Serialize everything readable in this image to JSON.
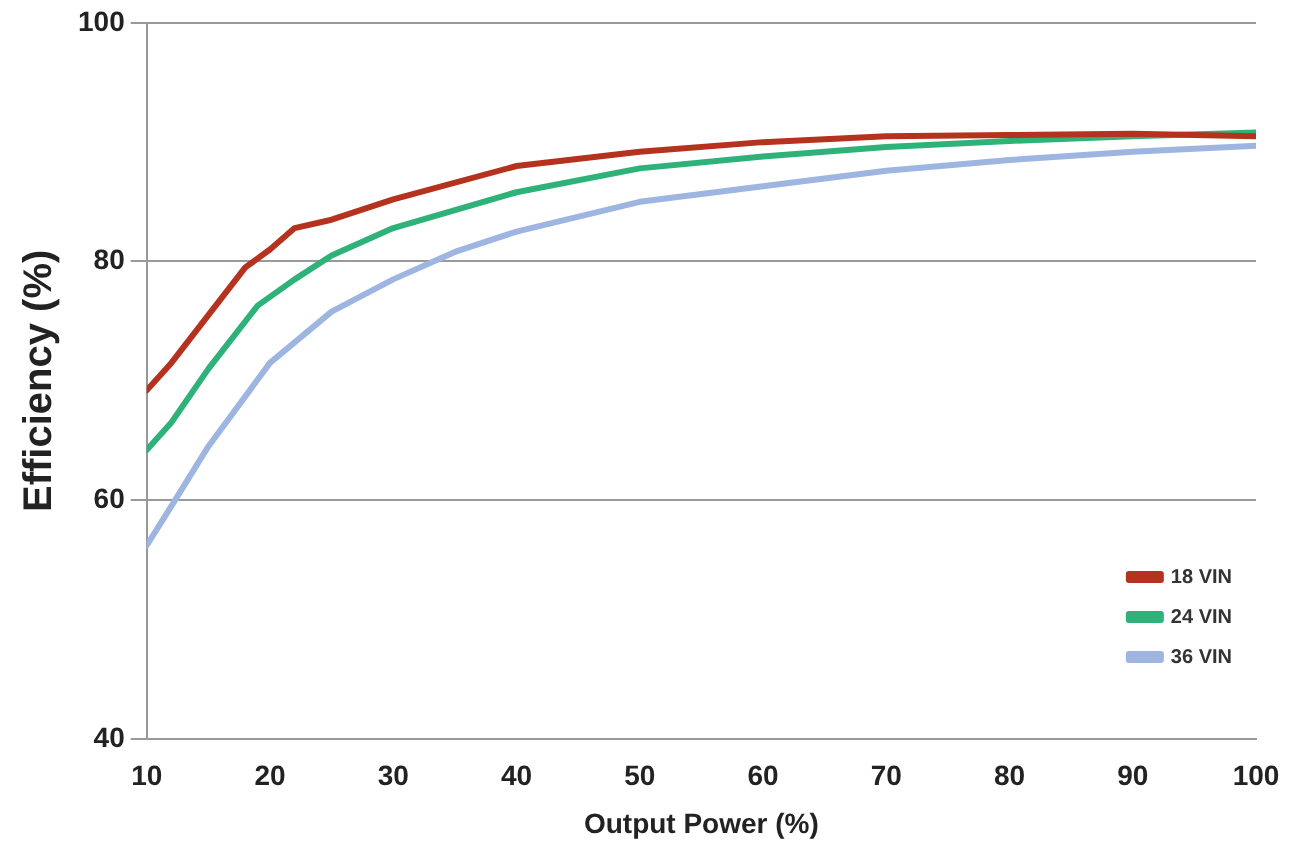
{
  "chart_data": {
    "type": "line",
    "xlabel": "Output Power (%)",
    "ylabel": "Efficiency (%)",
    "xlim": [
      10,
      100
    ],
    "xticks": [
      10,
      20,
      30,
      40,
      50,
      60,
      70,
      80,
      90,
      100
    ],
    "ylim": [
      40,
      100
    ],
    "yticks": [
      40,
      60,
      80,
      100
    ],
    "grid": "y",
    "legend": "right",
    "marker": "none",
    "line_style": "solid",
    "series": [
      {
        "name": "18 VIN",
        "color": "#b5321f",
        "x": [
          10,
          12,
          15,
          18,
          20,
          22,
          25,
          30,
          40,
          50,
          60,
          70,
          80,
          90,
          100
        ],
        "values": [
          69.2,
          71.5,
          75.5,
          79.5,
          81,
          82.8,
          83.5,
          85.2,
          88,
          89.2,
          90,
          90.5,
          90.6,
          90.7,
          90.5
        ]
      },
      {
        "name": "24 VIN",
        "color": "#2eb27a",
        "x": [
          10,
          12,
          15,
          19,
          22,
          25,
          30,
          40,
          50,
          60,
          70,
          80,
          90,
          100
        ],
        "values": [
          64.2,
          66.5,
          71,
          76.3,
          78.5,
          80.5,
          82.8,
          85.8,
          87.8,
          88.8,
          89.6,
          90.1,
          90.5,
          90.8
        ]
      },
      {
        "name": "36 VIN",
        "color": "#9db5e0",
        "x": [
          10,
          12,
          15,
          20,
          25,
          30,
          35,
          40,
          50,
          60,
          70,
          80,
          90,
          100
        ],
        "values": [
          56.2,
          59.5,
          64.5,
          71.5,
          75.8,
          78.5,
          80.8,
          82.5,
          85,
          86.3,
          87.6,
          88.5,
          89.2,
          89.7
        ]
      }
    ]
  }
}
